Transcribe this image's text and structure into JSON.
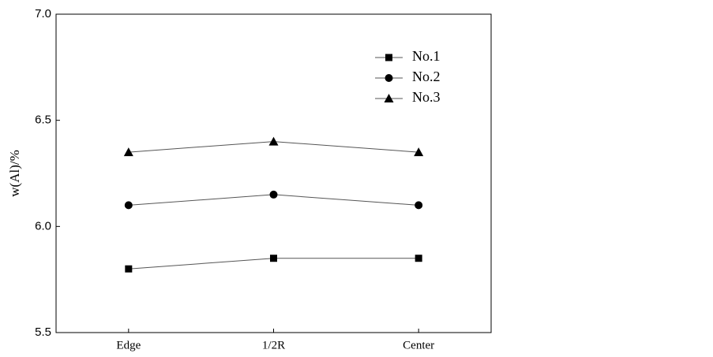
{
  "chart_data": {
    "type": "line",
    "ylabel": "w(Al)/%",
    "categories": [
      "Edge",
      "1/2R",
      "Center"
    ],
    "series": [
      {
        "name": "No.1",
        "color": "#000000",
        "marker": "square",
        "values": [
          5.8,
          5.85,
          5.85
        ]
      },
      {
        "name": "No.2",
        "color": "#000000",
        "marker": "circle",
        "values": [
          6.1,
          6.15,
          6.1
        ]
      },
      {
        "name": "No.3",
        "color": "#000000",
        "marker": "triangle",
        "values": [
          6.35,
          6.4,
          6.35
        ]
      }
    ],
    "ylim": [
      5.5,
      7.0
    ],
    "yticks": [
      {
        "value": 5.5,
        "label": "5.5"
      },
      {
        "value": 6,
        "label": "6.0"
      },
      {
        "value": 6.5,
        "label": "6.5"
      },
      {
        "value": 7,
        "label": "7.0"
      }
    ],
    "grid": false,
    "legend": "upper right"
  }
}
